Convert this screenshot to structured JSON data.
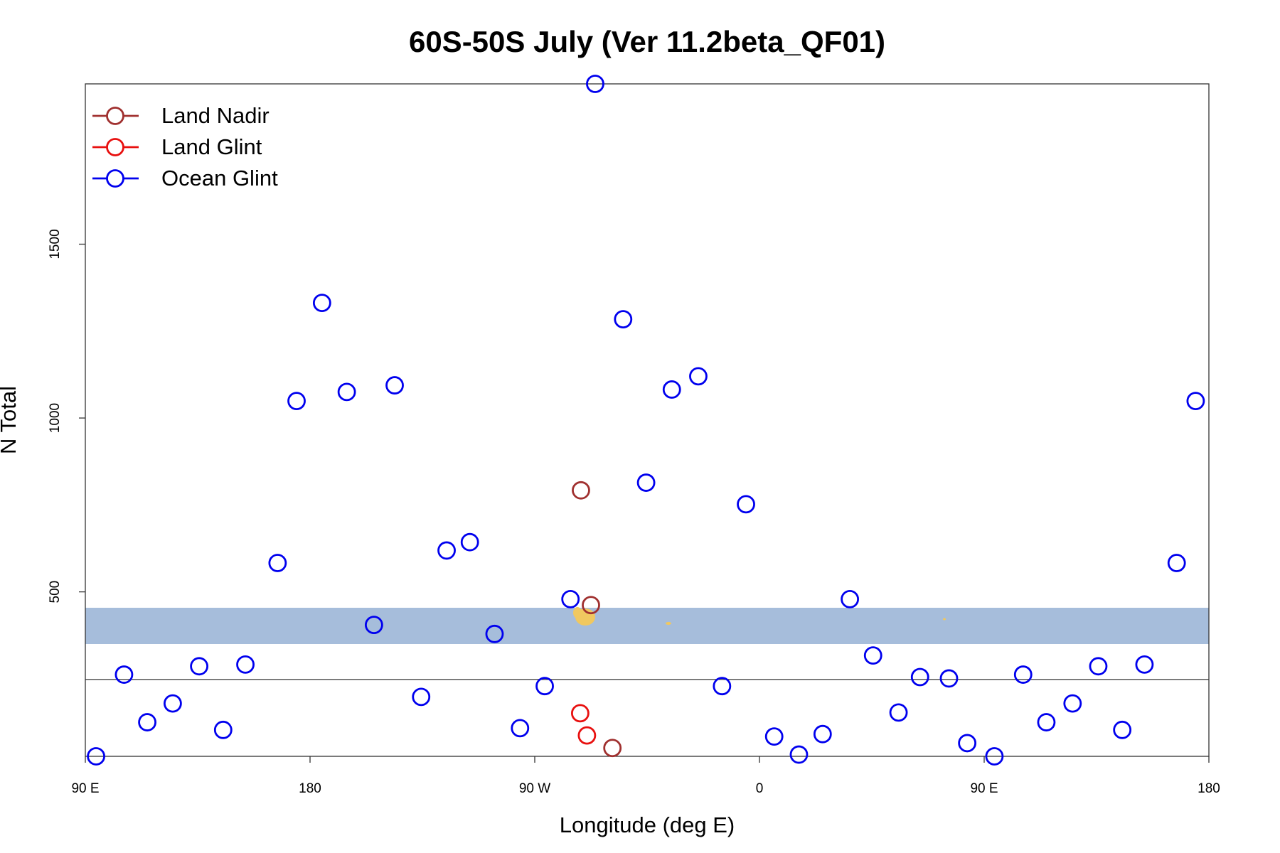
{
  "chart_data": {
    "type": "scatter",
    "title": "60S-50S July (Ver 11.2beta_QF01)",
    "x_label": "Longitude (deg E)",
    "y_label": "N Total",
    "xlim": [
      90,
      540
    ],
    "ylim": [
      27,
      1961
    ],
    "xticks": [
      {
        "value": 90,
        "label": "90 E"
      },
      180,
      {
        "value": 270,
        "label": "90 W"
      },
      {
        "value": 360,
        "label": "0"
      },
      {
        "value": 450,
        "label": "90 E"
      },
      {
        "value": 540,
        "label": "180"
      }
    ],
    "yticks": [
      500,
      1000,
      1500
    ],
    "hline": 248,
    "legend": "topleft",
    "series": [
      {
        "name": "Land Nadir",
        "color": "#a0302f",
        "x": [
          288.5,
          292.5,
          301.1
        ],
        "values": [
          792,
          462,
          51
        ]
      },
      {
        "name": "Land Glint",
        "color": "#e8100f",
        "x": [
          288.2,
          290.9
        ],
        "values": [
          151,
          87
        ]
      },
      {
        "name": "Ocean Glint",
        "color": "#0000ee",
        "x": [
          94.3,
          105.5,
          114.8,
          125.0,
          135.6,
          145.2,
          154.1,
          167.0,
          174.6,
          184.8,
          194.7,
          205.6,
          213.9,
          224.5,
          234.7,
          244.0,
          253.9,
          264.1,
          274.0,
          284.3,
          294.2,
          305.4,
          314.6,
          324.9,
          335.5,
          345.0,
          354.6,
          365.9,
          375.8,
          385.3,
          396.2,
          405.5,
          415.7,
          424.3,
          435.9,
          443.2,
          454.1,
          465.6,
          474.9,
          485.4,
          495.7,
          505.3,
          514.2,
          527.1,
          534.7
        ],
        "values": [
          27,
          262,
          125,
          179,
          286,
          103,
          291,
          583,
          1049,
          1331,
          1075,
          405,
          1094,
          198,
          619,
          643,
          379,
          108,
          229,
          479,
          1961,
          1284,
          814,
          1082,
          1120,
          229,
          752,
          84,
          32,
          91,
          479,
          317,
          153,
          255,
          251,
          65,
          27,
          262,
          125,
          179,
          286,
          103,
          291,
          583,
          1049
        ]
      }
    ]
  }
}
